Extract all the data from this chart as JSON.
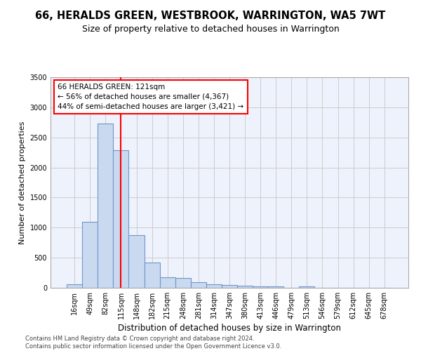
{
  "title": "66, HERALDS GREEN, WESTBROOK, WARRINGTON, WA5 7WT",
  "subtitle": "Size of property relative to detached houses in Warrington",
  "xlabel": "Distribution of detached houses by size in Warrington",
  "ylabel": "Number of detached properties",
  "categories": [
    "16sqm",
    "49sqm",
    "82sqm",
    "115sqm",
    "148sqm",
    "182sqm",
    "215sqm",
    "248sqm",
    "281sqm",
    "314sqm",
    "347sqm",
    "380sqm",
    "413sqm",
    "446sqm",
    "479sqm",
    "513sqm",
    "546sqm",
    "579sqm",
    "612sqm",
    "645sqm",
    "678sqm"
  ],
  "values": [
    55,
    1100,
    2730,
    2290,
    880,
    420,
    170,
    165,
    90,
    60,
    50,
    30,
    25,
    20,
    5,
    20,
    0,
    0,
    0,
    0,
    0
  ],
  "bar_color": "#c9d9f0",
  "bar_edgecolor": "#7096c8",
  "grid_color": "#cccccc",
  "background_color": "#eef2fc",
  "vline_x": 3,
  "vline_color": "red",
  "annotation_text": "66 HERALDS GREEN: 121sqm\n← 56% of detached houses are smaller (4,367)\n44% of semi-detached houses are larger (3,421) →",
  "annotation_box_color": "white",
  "annotation_box_edgecolor": "red",
  "footer_text": "Contains HM Land Registry data © Crown copyright and database right 2024.\nContains public sector information licensed under the Open Government Licence v3.0.",
  "ylim": [
    0,
    3500
  ],
  "yticks": [
    0,
    500,
    1000,
    1500,
    2000,
    2500,
    3000,
    3500
  ],
  "title_fontsize": 10.5,
  "subtitle_fontsize": 9,
  "xlabel_fontsize": 8.5,
  "ylabel_fontsize": 8,
  "tick_fontsize": 7,
  "footer_fontsize": 6,
  "annot_fontsize": 7.5
}
